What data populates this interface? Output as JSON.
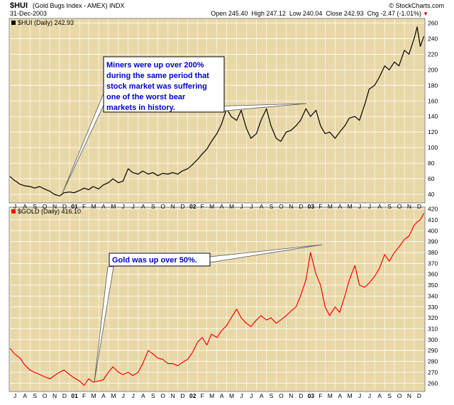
{
  "header": {
    "symbol": "$HUI",
    "name": "(Gold Bugs Index - AMEX) INDX",
    "date": "31-Dec-2003",
    "quote": "Open 245.40  High 247.12  Low 240.04  Close 242.93  Chg -2.47 (-1.01%)",
    "quote_arrow": "▼",
    "brand": "© StockCharts.com"
  },
  "colors": {
    "panel_bg": "#e8d8a8",
    "grid": "#ffffff",
    "hui_line": "#000000",
    "gold_line": "#ff0000",
    "annotation_text": "#0000cc"
  },
  "chart_data": [
    {
      "type": "line",
      "legend": "$HUI (Daily) 242.93",
      "legend_swatch_color": "#000000",
      "ylim": [
        30,
        265
      ],
      "yticks": [
        40,
        60,
        80,
        100,
        120,
        140,
        160,
        180,
        200,
        220,
        240,
        260
      ],
      "grid": true,
      "annotation": "Miners were up over 200% during the same period that stock market was suffering one of the worst bear markets in history.",
      "series": [
        {
          "color": "#000000",
          "x": [
            "2000-07-01",
            "2000-07-15",
            "2000-08-01",
            "2000-08-15",
            "2000-09-01",
            "2000-09-15",
            "2000-10-01",
            "2000-10-15",
            "2000-11-01",
            "2000-11-15",
            "2000-12-01",
            "2000-12-15",
            "2001-01-01",
            "2001-01-15",
            "2001-02-01",
            "2001-02-15",
            "2001-03-01",
            "2001-03-15",
            "2001-04-01",
            "2001-04-15",
            "2001-05-01",
            "2001-05-15",
            "2001-06-01",
            "2001-06-15",
            "2001-07-01",
            "2001-07-15",
            "2001-08-01",
            "2001-08-15",
            "2001-09-01",
            "2001-09-15",
            "2001-10-01",
            "2001-10-15",
            "2001-11-01",
            "2001-11-15",
            "2001-12-01",
            "2001-12-15",
            "2002-01-01",
            "2002-01-15",
            "2002-02-01",
            "2002-02-15",
            "2002-03-01",
            "2002-03-15",
            "2002-04-01",
            "2002-04-15",
            "2002-05-01",
            "2002-05-15",
            "2002-06-01",
            "2002-06-15",
            "2002-07-01",
            "2002-07-15",
            "2002-08-01",
            "2002-08-15",
            "2002-09-01",
            "2002-09-15",
            "2002-10-01",
            "2002-10-15",
            "2002-11-01",
            "2002-11-15",
            "2002-12-01",
            "2002-12-15",
            "2003-01-01",
            "2003-01-15",
            "2003-02-01",
            "2003-02-15",
            "2003-03-01",
            "2003-03-15",
            "2003-04-01",
            "2003-04-15",
            "2003-05-01",
            "2003-05-15",
            "2003-06-01",
            "2003-06-15",
            "2003-07-01",
            "2003-07-15",
            "2003-08-01",
            "2003-08-15",
            "2003-09-01",
            "2003-09-15",
            "2003-10-01",
            "2003-10-15",
            "2003-11-01",
            "2003-11-15",
            "2003-12-01",
            "2003-12-10",
            "2003-12-20",
            "2003-12-31"
          ],
          "values": [
            63,
            58,
            53,
            51,
            50,
            48,
            50,
            47,
            44,
            40,
            38,
            42,
            43,
            42,
            45,
            48,
            46,
            50,
            47,
            52,
            55,
            60,
            55,
            57,
            73,
            68,
            66,
            70,
            66,
            68,
            64,
            67,
            66,
            68,
            66,
            70,
            73,
            78,
            85,
            92,
            98,
            108,
            118,
            130,
            150,
            140,
            135,
            148,
            125,
            112,
            118,
            135,
            150,
            128,
            112,
            108,
            120,
            122,
            128,
            135,
            150,
            140,
            148,
            128,
            118,
            120,
            112,
            120,
            128,
            138,
            140,
            135,
            155,
            175,
            180,
            190,
            205,
            200,
            210,
            205,
            225,
            220,
            240,
            255,
            230,
            243
          ]
        }
      ]
    },
    {
      "type": "line",
      "legend": "$GOLD (Daily) 416.10",
      "legend_swatch_color": "#ff0000",
      "ylim": [
        253,
        421
      ],
      "yticks": [
        260,
        270,
        280,
        290,
        300,
        310,
        320,
        330,
        340,
        350,
        360,
        370,
        380,
        390,
        400,
        410,
        420
      ],
      "grid": true,
      "annotation": "Gold was up over 50%.",
      "series": [
        {
          "color": "#ff0000",
          "x": [
            "2000-07-01",
            "2000-07-15",
            "2000-08-01",
            "2000-08-15",
            "2000-09-01",
            "2000-09-15",
            "2000-10-01",
            "2000-10-15",
            "2000-11-01",
            "2000-11-15",
            "2000-12-01",
            "2000-12-15",
            "2001-01-01",
            "2001-01-15",
            "2001-02-01",
            "2001-02-15",
            "2001-03-01",
            "2001-03-15",
            "2001-04-01",
            "2001-04-15",
            "2001-05-01",
            "2001-05-15",
            "2001-06-01",
            "2001-06-15",
            "2001-07-01",
            "2001-07-15",
            "2001-08-01",
            "2001-08-15",
            "2001-09-01",
            "2001-09-15",
            "2001-10-01",
            "2001-10-15",
            "2001-11-01",
            "2001-11-15",
            "2001-12-01",
            "2001-12-15",
            "2002-01-01",
            "2002-01-15",
            "2002-02-01",
            "2002-02-15",
            "2002-03-01",
            "2002-03-15",
            "2002-04-01",
            "2002-04-15",
            "2002-05-01",
            "2002-05-15",
            "2002-06-01",
            "2002-06-15",
            "2002-07-01",
            "2002-07-15",
            "2002-08-01",
            "2002-08-15",
            "2002-09-01",
            "2002-09-15",
            "2002-10-01",
            "2002-10-15",
            "2002-11-01",
            "2002-11-15",
            "2002-12-01",
            "2002-12-15",
            "2003-01-01",
            "2003-01-15",
            "2003-02-01",
            "2003-02-15",
            "2003-03-01",
            "2003-03-15",
            "2003-04-01",
            "2003-04-15",
            "2003-05-01",
            "2003-05-15",
            "2003-06-01",
            "2003-06-15",
            "2003-07-01",
            "2003-07-15",
            "2003-08-01",
            "2003-08-15",
            "2003-09-01",
            "2003-09-15",
            "2003-10-01",
            "2003-10-15",
            "2003-11-01",
            "2003-11-15",
            "2003-12-01",
            "2003-12-10",
            "2003-12-20",
            "2003-12-31"
          ],
          "values": [
            292,
            287,
            283,
            277,
            272,
            270,
            268,
            266,
            264,
            267,
            270,
            272,
            268,
            265,
            262,
            258,
            264,
            261,
            262,
            263,
            270,
            275,
            270,
            268,
            270,
            267,
            270,
            278,
            290,
            287,
            283,
            282,
            278,
            278,
            276,
            279,
            282,
            288,
            298,
            302,
            295,
            305,
            302,
            308,
            313,
            320,
            328,
            320,
            315,
            312,
            318,
            322,
            318,
            320,
            315,
            318,
            322,
            326,
            330,
            340,
            355,
            380,
            360,
            350,
            330,
            322,
            330,
            325,
            340,
            355,
            368,
            350,
            348,
            352,
            358,
            365,
            378,
            372,
            380,
            385,
            392,
            395,
            405,
            408,
            410,
            416
          ]
        }
      ]
    }
  ],
  "x_axis": {
    "month_labels": [
      "J",
      "A",
      "S",
      "O",
      "N",
      "D",
      "01",
      "F",
      "M",
      "A",
      "M",
      "J",
      "J",
      "A",
      "S",
      "O",
      "N",
      "D",
      "02",
      "F",
      "M",
      "A",
      "M",
      "J",
      "J",
      "A",
      "S",
      "O",
      "N",
      "D",
      "03",
      "F",
      "M",
      "A",
      "M",
      "J",
      "J",
      "A",
      "S",
      "O",
      "N",
      "D"
    ]
  }
}
